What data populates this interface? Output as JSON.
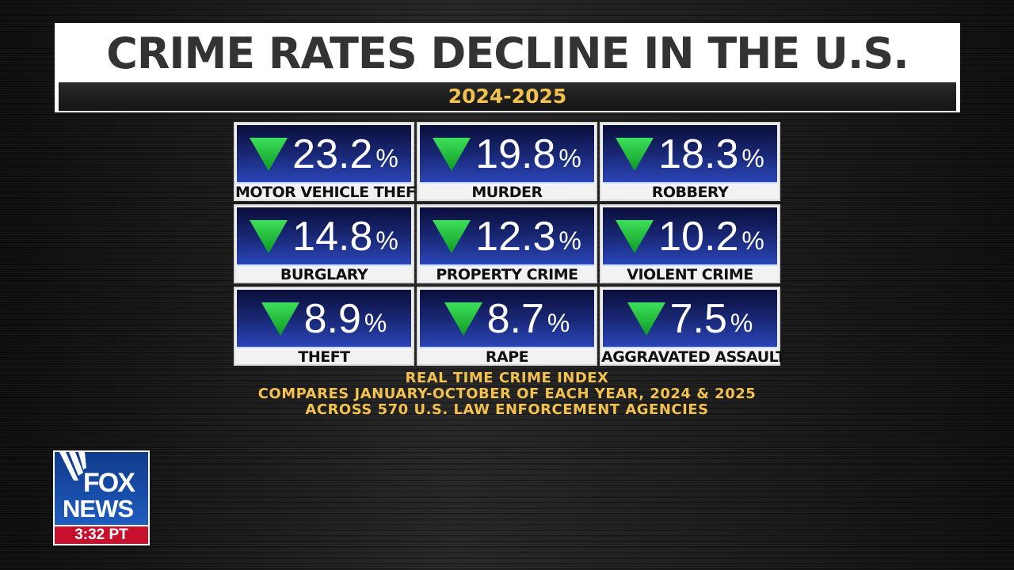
{
  "headline": {
    "title": "CRIME RATES DECLINE IN THE U.S.",
    "years": "2024-2025"
  },
  "colors": {
    "accent_gold": "#f2c14e",
    "arrow_green": "#1fc43a",
    "card_blue": "#1a2a7a"
  },
  "stats": [
    {
      "value": "23.2",
      "unit": "%",
      "label": "MOTOR VEHICLE THEFT",
      "icon": "down-arrow-icon"
    },
    {
      "value": "19.8",
      "unit": "%",
      "label": "MURDER",
      "icon": "down-arrow-icon"
    },
    {
      "value": "18.3",
      "unit": "%",
      "label": "ROBBERY",
      "icon": "down-arrow-icon"
    },
    {
      "value": "14.8",
      "unit": "%",
      "label": "BURGLARY",
      "icon": "down-arrow-icon"
    },
    {
      "value": "12.3",
      "unit": "%",
      "label": "PROPERTY CRIME",
      "icon": "down-arrow-icon"
    },
    {
      "value": "10.2",
      "unit": "%",
      "label": "VIOLENT CRIME",
      "icon": "down-arrow-icon"
    },
    {
      "value": "8.9",
      "unit": "%",
      "label": "THEFT",
      "icon": "down-arrow-icon"
    },
    {
      "value": "8.7",
      "unit": "%",
      "label": "RAPE",
      "icon": "down-arrow-icon"
    },
    {
      "value": "7.5",
      "unit": "%",
      "label": "AGGRAVATED ASSAULT",
      "icon": "down-arrow-icon"
    }
  ],
  "source": {
    "line1": "REAL TIME CRIME INDEX",
    "line2": "COMPARES JANUARY-OCTOBER OF EACH YEAR, 2024 & 2025",
    "line3": "ACROSS 570 U.S. LAW ENFORCEMENT AGENCIES"
  },
  "logo": {
    "fox": "FOX",
    "news": "NEWS",
    "time": "3:32 PT"
  }
}
